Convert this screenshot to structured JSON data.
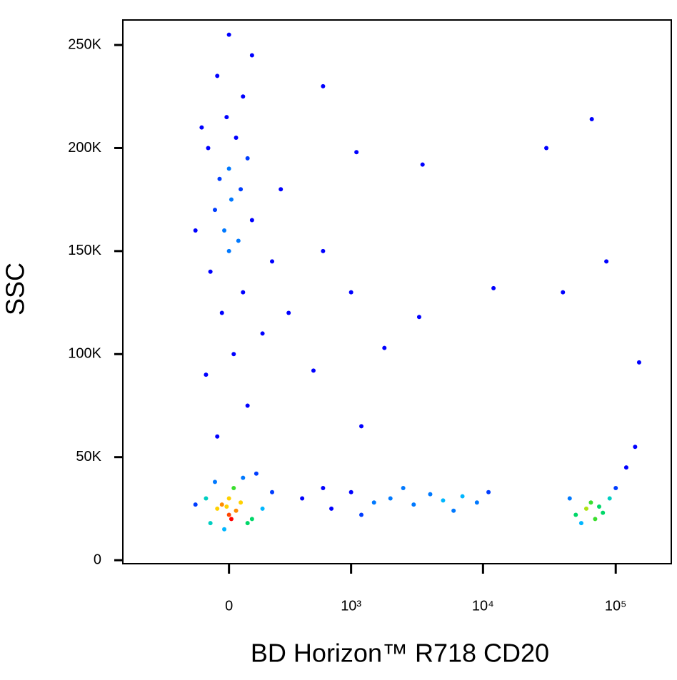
{
  "chart_data": {
    "type": "scatter",
    "x_label": "BD Horizon™ R718  CD20",
    "y_label": "SSC",
    "xscale": "biexponential",
    "xlim": [
      -750,
      262144
    ],
    "ylim": [
      -1700,
      262144
    ],
    "xticks": [
      0,
      {
        "value": 1000,
        "label": "10³"
      },
      {
        "value": 10000,
        "label": "10⁴"
      },
      {
        "value": 100000,
        "label": "10⁵"
      }
    ],
    "yticks": [
      0,
      {
        "value": 50000,
        "label": "50K"
      },
      {
        "value": 100000,
        "label": "100K"
      },
      {
        "value": 150000,
        "label": "150K"
      },
      {
        "value": 200000,
        "label": "200K"
      },
      {
        "value": 250000,
        "label": "250K"
      }
    ],
    "color_by": "density",
    "x": [
      -50,
      0,
      50,
      -100,
      100,
      20,
      -80,
      150,
      -20,
      60,
      -150,
      200,
      30,
      -30,
      80,
      0,
      -60,
      120,
      10,
      -10,
      -50,
      80,
      -100,
      20,
      150,
      -30,
      60,
      -80,
      0,
      40,
      -20,
      100,
      -60,
      10,
      50,
      -40,
      0,
      80,
      -90,
      30,
      -10,
      60,
      -50,
      100,
      0,
      200,
      -150,
      250,
      -120,
      300,
      400,
      700,
      1000,
      1500,
      2000,
      3000,
      4000,
      5000,
      7000,
      9000,
      600,
      1200,
      2500,
      6000,
      11000,
      50000,
      60000,
      70000,
      80000,
      65000,
      90000,
      55000,
      75000,
      100000,
      120000,
      45000,
      140000,
      600,
      1100,
      3500,
      30000,
      66000,
      1000,
      12000,
      600,
      3300,
      1800,
      500,
      1200,
      150000,
      40000,
      85000
    ],
    "values": [
      25000,
      22000,
      28000,
      30000,
      20000,
      35000,
      18000,
      25000,
      15000,
      40000,
      27000,
      33000,
      24000,
      27000,
      18000,
      30000,
      38000,
      42000,
      20000,
      26000,
      60000,
      75000,
      90000,
      100000,
      110000,
      120000,
      130000,
      140000,
      150000,
      155000,
      160000,
      165000,
      170000,
      175000,
      180000,
      185000,
      190000,
      195000,
      200000,
      205000,
      215000,
      225000,
      235000,
      245000,
      255000,
      145000,
      160000,
      180000,
      210000,
      120000,
      30000,
      25000,
      33000,
      28000,
      30000,
      27000,
      32000,
      29000,
      31000,
      28000,
      35000,
      22000,
      35000,
      24000,
      33000,
      22000,
      25000,
      20000,
      23000,
      28000,
      30000,
      18000,
      26000,
      35000,
      45000,
      30000,
      55000,
      230000,
      198000,
      192000,
      200000,
      214000,
      130000,
      132000,
      150000,
      118000,
      103000,
      92000,
      65000,
      96000,
      130000,
      145000
    ]
  }
}
